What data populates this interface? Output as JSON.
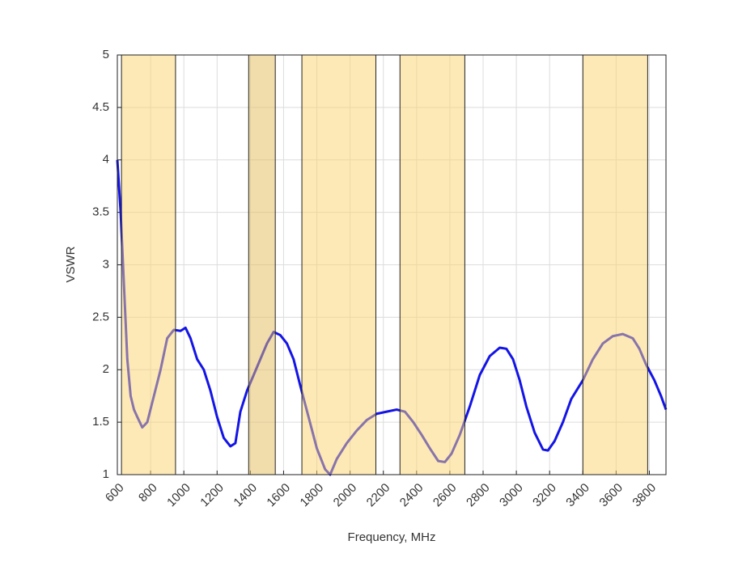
{
  "chart_data": {
    "type": "line",
    "xlabel": "Frequency, MHz",
    "ylabel": "VSWR",
    "xlim": [
      600,
      3900
    ],
    "ylim": [
      1,
      5
    ],
    "xticks": [
      600,
      800,
      1000,
      1200,
      1400,
      1600,
      1800,
      2000,
      2200,
      2400,
      2600,
      2800,
      3000,
      3200,
      3400,
      3600,
      3800
    ],
    "yticks": [
      1,
      1.5,
      2,
      2.5,
      3,
      3.5,
      4,
      4.5,
      5
    ],
    "grid": true,
    "shaded_bands": [
      {
        "range": [
          625,
          950
        ],
        "color": "#fbd46e"
      },
      {
        "range": [
          1390,
          1550
        ],
        "color": "#e3b95a"
      },
      {
        "range": [
          1710,
          2155
        ],
        "color": "#fbd46e"
      },
      {
        "range": [
          2300,
          2690
        ],
        "color": "#fbd46e"
      },
      {
        "range": [
          3400,
          3790
        ],
        "color": "#fbd46e"
      }
    ],
    "series": [
      {
        "color": "#1414e6",
        "x": [
          600,
          620,
          640,
          660,
          680,
          700,
          720,
          750,
          780,
          820,
          860,
          900,
          940,
          980,
          1010,
          1040,
          1080,
          1120,
          1160,
          1200,
          1240,
          1280,
          1310,
          1340,
          1380,
          1420,
          1460,
          1500,
          1540,
          1580,
          1620,
          1660,
          1700,
          1750,
          1800,
          1850,
          1880,
          1920,
          1980,
          2040,
          2100,
          2160,
          2220,
          2280,
          2330,
          2380,
          2430,
          2480,
          2530,
          2570,
          2610,
          2660,
          2720,
          2780,
          2840,
          2900,
          2940,
          2980,
          3020,
          3060,
          3110,
          3160,
          3190,
          3230,
          3280,
          3330,
          3400,
          3460,
          3520,
          3580,
          3640,
          3700,
          3740,
          3780,
          3830,
          3870,
          3900
        ],
        "values": [
          4.0,
          3.5,
          2.8,
          2.1,
          1.75,
          1.62,
          1.55,
          1.45,
          1.5,
          1.75,
          2.0,
          2.3,
          2.38,
          2.37,
          2.4,
          2.3,
          2.1,
          2.0,
          1.8,
          1.55,
          1.35,
          1.27,
          1.3,
          1.6,
          1.8,
          1.95,
          2.1,
          2.25,
          2.36,
          2.33,
          2.25,
          2.1,
          1.85,
          1.55,
          1.25,
          1.05,
          1.0,
          1.15,
          1.3,
          1.42,
          1.52,
          1.58,
          1.6,
          1.62,
          1.6,
          1.5,
          1.38,
          1.25,
          1.13,
          1.12,
          1.2,
          1.38,
          1.65,
          1.95,
          2.13,
          2.21,
          2.2,
          2.1,
          1.9,
          1.65,
          1.4,
          1.24,
          1.23,
          1.32,
          1.5,
          1.72,
          1.9,
          2.1,
          2.25,
          2.32,
          2.34,
          2.3,
          2.2,
          2.05,
          1.9,
          1.75,
          1.62
        ]
      }
    ]
  }
}
